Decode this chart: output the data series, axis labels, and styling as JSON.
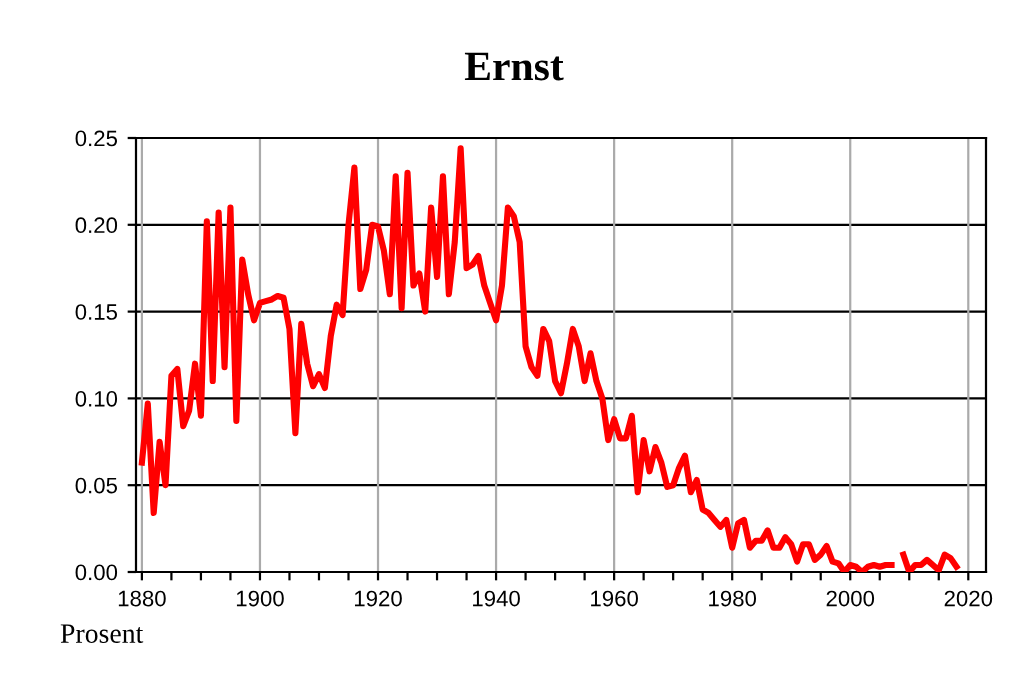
{
  "chart_data": {
    "type": "line",
    "title": "Ernst",
    "ylabel": "Prosent",
    "x": [
      1880,
      1881,
      1882,
      1883,
      1884,
      1885,
      1886,
      1887,
      1888,
      1889,
      1890,
      1891,
      1892,
      1893,
      1894,
      1895,
      1896,
      1897,
      1898,
      1899,
      1900,
      1901,
      1902,
      1903,
      1904,
      1905,
      1906,
      1907,
      1908,
      1909,
      1910,
      1911,
      1912,
      1913,
      1914,
      1915,
      1916,
      1917,
      1918,
      1919,
      1920,
      1921,
      1922,
      1923,
      1924,
      1925,
      1926,
      1927,
      1928,
      1929,
      1930,
      1931,
      1932,
      1933,
      1934,
      1935,
      1936,
      1937,
      1938,
      1939,
      1940,
      1941,
      1942,
      1943,
      1944,
      1945,
      1946,
      1947,
      1948,
      1949,
      1950,
      1951,
      1952,
      1953,
      1954,
      1955,
      1956,
      1957,
      1958,
      1959,
      1960,
      1961,
      1962,
      1963,
      1964,
      1965,
      1966,
      1967,
      1968,
      1969,
      1970,
      1971,
      1972,
      1973,
      1974,
      1975,
      1976,
      1977,
      1978,
      1979,
      1980,
      1981,
      1982,
      1983,
      1984,
      1985,
      1986,
      1987,
      1988,
      1989,
      1990,
      1991,
      1992,
      1993,
      1994,
      1995,
      1996,
      1997,
      1998,
      1999,
      2000,
      2001,
      2002,
      2003,
      2004,
      2005,
      2006,
      2007,
      2008,
      2009,
      2010,
      2011,
      2012,
      2013,
      2014,
      2015,
      2016,
      2017,
      2018
    ],
    "series": [
      {
        "color": "#ff0000",
        "values": [
          0.063,
          0.097,
          0.034,
          0.075,
          0.05,
          0.113,
          0.117,
          0.084,
          0.093,
          0.12,
          0.09,
          0.202,
          0.11,
          0.207,
          0.118,
          0.21,
          0.087,
          0.18,
          0.16,
          0.145,
          0.155,
          0.156,
          0.157,
          0.159,
          0.158,
          0.14,
          0.08,
          0.143,
          0.12,
          0.107,
          0.114,
          0.106,
          0.136,
          0.154,
          0.148,
          0.2,
          0.233,
          0.163,
          0.174,
          0.2,
          0.199,
          0.185,
          0.16,
          0.228,
          0.152,
          0.23,
          0.165,
          0.172,
          0.15,
          0.21,
          0.17,
          0.228,
          0.16,
          0.19,
          0.244,
          0.175,
          0.177,
          0.182,
          0.165,
          0.155,
          0.145,
          0.165,
          0.21,
          0.205,
          0.19,
          0.13,
          0.118,
          0.113,
          0.14,
          0.133,
          0.11,
          0.103,
          0.12,
          0.14,
          0.13,
          0.11,
          0.126,
          0.11,
          0.1,
          0.076,
          0.088,
          0.077,
          0.077,
          0.09,
          0.046,
          0.076,
          0.058,
          0.072,
          0.063,
          0.049,
          0.05,
          0.06,
          0.067,
          0.046,
          0.053,
          0.036,
          0.034,
          0.03,
          0.026,
          0.03,
          0.014,
          0.028,
          0.03,
          0.014,
          0.018,
          0.018,
          0.024,
          0.014,
          0.014,
          0.02,
          0.016,
          0.006,
          0.016,
          0.016,
          0.007,
          0.01,
          0.015,
          0.006,
          0.005,
          0.0,
          0.004,
          0.003,
          0.0,
          0.003,
          0.004,
          0.003,
          0.004,
          0.004,
          null,
          0.01,
          0.0,
          0.004,
          0.004,
          0.007,
          0.004,
          0.001,
          0.01,
          0.008,
          0.003
        ]
      }
    ],
    "xlim": [
      1879,
      2023
    ],
    "ylim": [
      0,
      0.25
    ],
    "xticks": [
      1880,
      {
        "value": 1885,
        "label": null
      },
      {
        "value": 1890,
        "label": null
      },
      {
        "value": 1895,
        "label": null
      },
      1900,
      {
        "value": 1905,
        "label": null
      },
      {
        "value": 1910,
        "label": null
      },
      {
        "value": 1915,
        "label": null
      },
      1920,
      {
        "value": 1925,
        "label": null
      },
      {
        "value": 1930,
        "label": null
      },
      {
        "value": 1935,
        "label": null
      },
      1940,
      {
        "value": 1945,
        "label": null
      },
      {
        "value": 1950,
        "label": null
      },
      {
        "value": 1955,
        "label": null
      },
      1960,
      {
        "value": 1965,
        "label": null
      },
      {
        "value": 1970,
        "label": null
      },
      {
        "value": 1975,
        "label": null
      },
      1980,
      {
        "value": 1985,
        "label": null
      },
      {
        "value": 1990,
        "label": null
      },
      {
        "value": 1995,
        "label": null
      },
      2000,
      {
        "value": 2005,
        "label": null
      },
      {
        "value": 2010,
        "label": null
      },
      {
        "value": 2015,
        "label": null
      },
      2020
    ],
    "yticks": [
      {
        "value": 0,
        "label": "0.00"
      },
      {
        "value": 0.05,
        "label": "0.05"
      },
      {
        "value": 0.1,
        "label": "0.10"
      },
      {
        "value": 0.15,
        "label": "0.15"
      },
      {
        "value": 0.2,
        "label": "0.20"
      },
      {
        "value": 0.25,
        "label": "0.25"
      }
    ],
    "grid": true,
    "marker": "none",
    "line_style": "solid"
  }
}
